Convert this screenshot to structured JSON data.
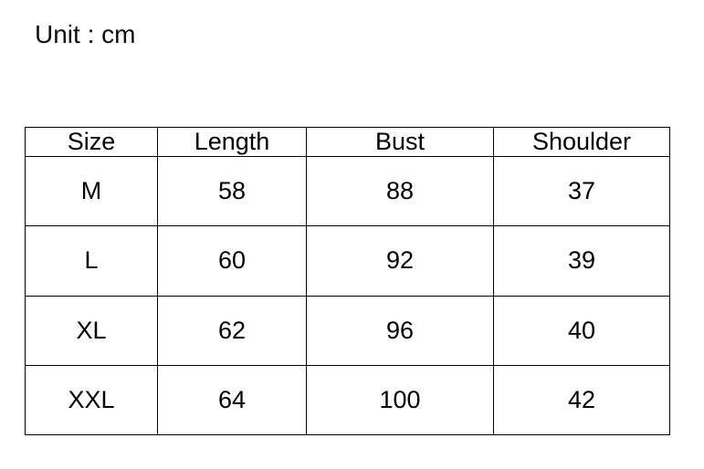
{
  "page": {
    "unit_label": "Unit : cm"
  },
  "colors": {
    "background": "#ffffff",
    "text": "#0d0d0d",
    "border": "#000000"
  },
  "chart_data": {
    "type": "table",
    "title": "Unit : cm",
    "unit": "cm",
    "columns": [
      "Size",
      "Length",
      "Bust",
      "Shoulder"
    ],
    "rows": [
      [
        "M",
        "58",
        "88",
        "37"
      ],
      [
        "L",
        "60",
        "92",
        "39"
      ],
      [
        "XL",
        "62",
        "96",
        "40"
      ],
      [
        "XXL",
        "64",
        "100",
        "42"
      ]
    ]
  }
}
